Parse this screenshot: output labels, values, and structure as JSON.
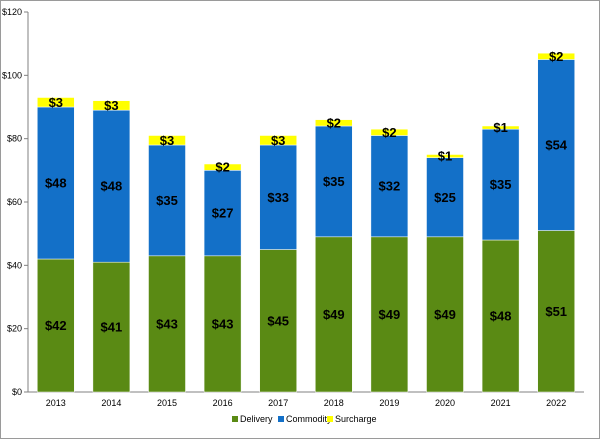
{
  "chart_data": {
    "type": "bar",
    "stacked": true,
    "categories": [
      "2013",
      "2014",
      "2015",
      "2016",
      "2017",
      "2018",
      "2019",
      "2020",
      "2021",
      "2022"
    ],
    "series": [
      {
        "name": "Delivery",
        "color": "#5a8a14",
        "values": [
          42,
          41,
          43,
          43,
          45,
          49,
          49,
          49,
          48,
          51
        ],
        "labels": [
          "$42",
          "$41",
          "$43",
          "$43",
          "$45",
          "$49",
          "$49",
          "$49",
          "$48",
          "$51"
        ]
      },
      {
        "name": "Commodity",
        "color": "#1370c8",
        "values": [
          48,
          48,
          35,
          27,
          33,
          35,
          32,
          25,
          35,
          54
        ],
        "labels": [
          "$48",
          "$48",
          "$35",
          "$27",
          "$33",
          "$35",
          "$32",
          "$25",
          "$35",
          "$54"
        ]
      },
      {
        "name": "Surcharge",
        "color": "#ffff00",
        "values": [
          3,
          3,
          3,
          2,
          3,
          2,
          2,
          1,
          1,
          2
        ],
        "labels": [
          "$3",
          "$3",
          "$3",
          "$2",
          "$3",
          "$2",
          "$2",
          "$1",
          "$1",
          "$2"
        ]
      }
    ],
    "title": "",
    "xlabel": "",
    "ylabel": "",
    "ylim": [
      0,
      120
    ],
    "yticks": [
      0,
      20,
      40,
      60,
      80,
      100,
      120
    ],
    "ytick_labels": [
      "$0",
      "$20",
      "$40",
      "$60",
      "$80",
      "$100",
      "$120"
    ],
    "grid": false,
    "legend": "bottom-center",
    "legend_entries": [
      "Delivery",
      "Commodity",
      "Surcharge"
    ]
  }
}
